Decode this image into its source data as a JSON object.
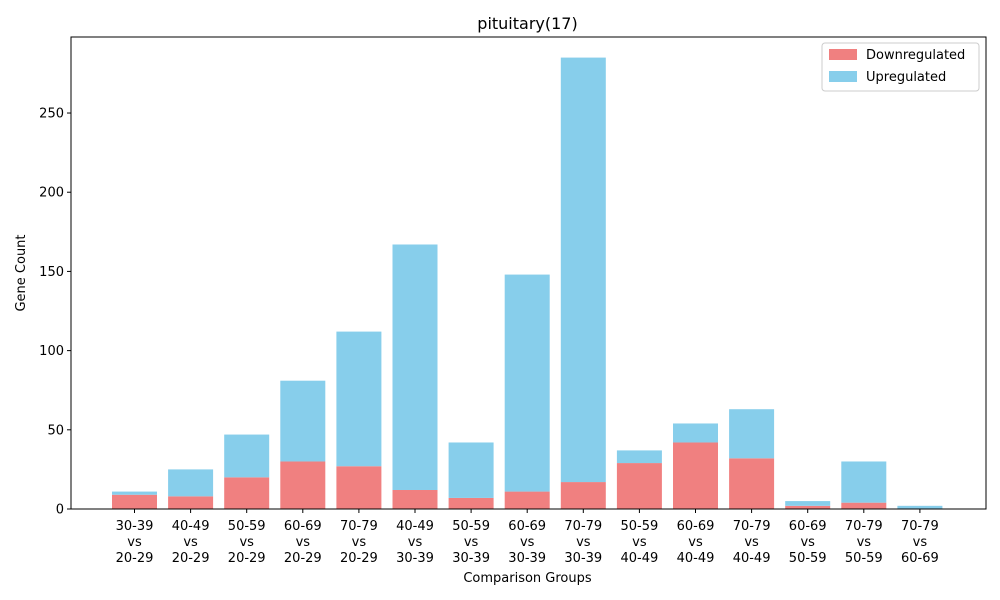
{
  "chart_data": {
    "type": "bar",
    "stacked": true,
    "title": "pituitary(17)",
    "xlabel": "Comparison Groups",
    "ylabel": "Gene Count",
    "ylim": [
      0,
      298
    ],
    "yticks": [
      0,
      50,
      100,
      150,
      200,
      250
    ],
    "grid": false,
    "legend_position": "top-right",
    "categories": [
      [
        "30-39",
        "vs",
        "20-29"
      ],
      [
        "40-49",
        "vs",
        "20-29"
      ],
      [
        "50-59",
        "vs",
        "20-29"
      ],
      [
        "60-69",
        "vs",
        "20-29"
      ],
      [
        "70-79",
        "vs",
        "20-29"
      ],
      [
        "40-49",
        "vs",
        "30-39"
      ],
      [
        "50-59",
        "vs",
        "30-39"
      ],
      [
        "60-69",
        "vs",
        "30-39"
      ],
      [
        "70-79",
        "vs",
        "30-39"
      ],
      [
        "50-59",
        "vs",
        "40-49"
      ],
      [
        "60-69",
        "vs",
        "40-49"
      ],
      [
        "70-79",
        "vs",
        "40-49"
      ],
      [
        "60-69",
        "vs",
        "50-59"
      ],
      [
        "70-79",
        "vs",
        "50-59"
      ],
      [
        "70-79",
        "vs",
        "60-69"
      ]
    ],
    "series": [
      {
        "name": "Downregulated",
        "color": "#f08080",
        "values": [
          9,
          8,
          20,
          30,
          27,
          12,
          7,
          11,
          17,
          29,
          42,
          32,
          2,
          4,
          0
        ]
      },
      {
        "name": "Upregulated",
        "color": "#87ceeb",
        "values": [
          2,
          17,
          27,
          51,
          85,
          155,
          35,
          137,
          268,
          8,
          12,
          31,
          3,
          26,
          2
        ]
      }
    ]
  }
}
